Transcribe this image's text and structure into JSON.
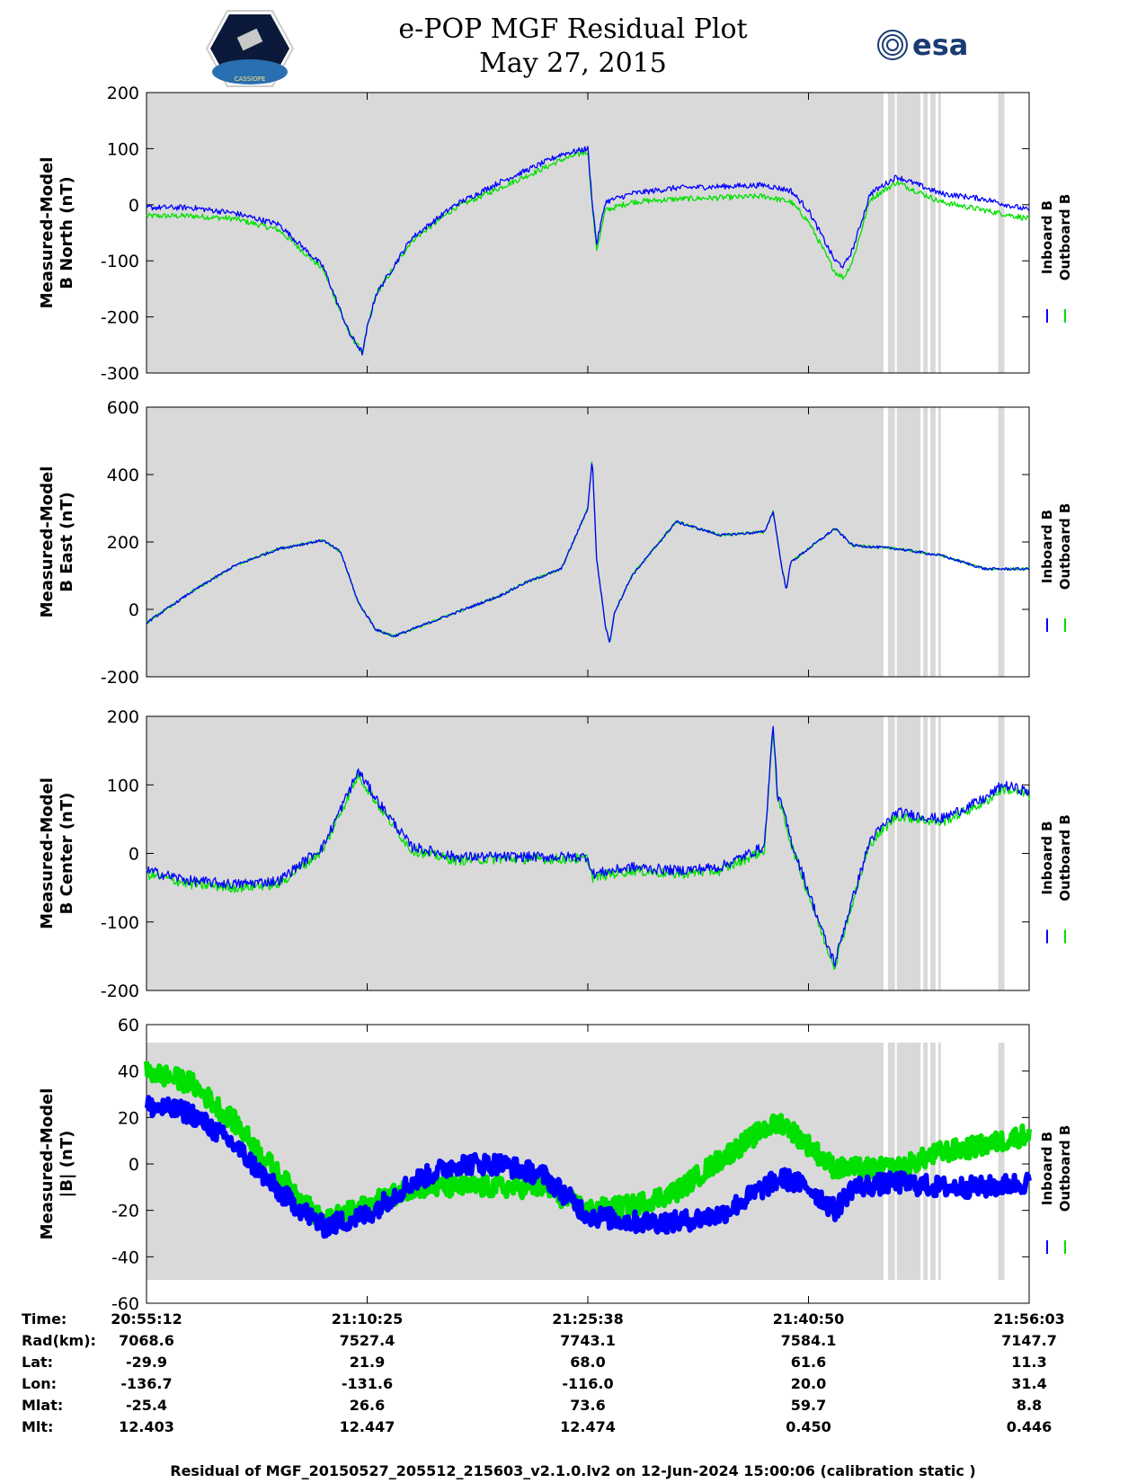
{
  "header": {
    "title_line1": "e-POP MGF Residual Plot",
    "title_line2": "May 27, 2015",
    "logo_left_text": "CASSIOPE",
    "logo_right_text": "esa"
  },
  "legend": {
    "inboard": "Inboard B",
    "outboard": "Outboard B"
  },
  "colors": {
    "inboard": "#0000ff",
    "outboard": "#00e000",
    "background": "#d9d9d9"
  },
  "chart_data": [
    {
      "type": "line",
      "ylabel_line1": "Measured-Model",
      "ylabel_line2": "B North (nT)",
      "ylim": [
        -300,
        200
      ],
      "yticks": [
        -300,
        -200,
        -100,
        0,
        100,
        200
      ],
      "x_frac": [
        0,
        0.05,
        0.1,
        0.15,
        0.2,
        0.23,
        0.245,
        0.25,
        0.26,
        0.3,
        0.35,
        0.4,
        0.45,
        0.47,
        0.5,
        0.505,
        0.51,
        0.52,
        0.53,
        0.55,
        0.6,
        0.7,
        0.73,
        0.75,
        0.77,
        0.78,
        0.79,
        0.8,
        0.82,
        0.85,
        0.9,
        0.95,
        1.0
      ],
      "series": [
        {
          "name": "Inboard B",
          "values": [
            -5,
            -5,
            -15,
            -35,
            -110,
            -230,
            -265,
            -220,
            -160,
            -60,
            0,
            40,
            75,
            90,
            100,
            5,
            -70,
            5,
            10,
            20,
            30,
            35,
            25,
            -10,
            -70,
            -100,
            -110,
            -80,
            20,
            50,
            20,
            10,
            -10
          ]
        },
        {
          "name": "Outboard B",
          "values": [
            -20,
            -20,
            -25,
            -45,
            -115,
            -230,
            -265,
            -220,
            -160,
            -65,
            -5,
            30,
            65,
            80,
            95,
            -5,
            -80,
            -10,
            -5,
            5,
            10,
            15,
            5,
            -30,
            -90,
            -120,
            -130,
            -100,
            10,
            40,
            5,
            -10,
            -25
          ]
        }
      ],
      "gray_bands": [
        [
          0,
          0.835
        ],
        [
          0.84,
          0.848
        ],
        [
          0.85,
          0.877
        ],
        [
          0.88,
          0.885
        ],
        [
          0.888,
          0.894
        ],
        [
          0.897,
          0.9
        ],
        [
          0.965,
          0.972
        ]
      ]
    },
    {
      "type": "line",
      "ylabel_line1": "Measured-Model",
      "ylabel_line2": "B East (nT)",
      "ylim": [
        -200,
        600
      ],
      "yticks": [
        -200,
        0,
        200,
        400,
        600
      ],
      "x_frac": [
        0,
        0.05,
        0.1,
        0.15,
        0.2,
        0.22,
        0.24,
        0.26,
        0.28,
        0.3,
        0.35,
        0.4,
        0.43,
        0.47,
        0.5,
        0.505,
        0.51,
        0.52,
        0.525,
        0.53,
        0.55,
        0.6,
        0.65,
        0.7,
        0.71,
        0.72,
        0.725,
        0.73,
        0.78,
        0.8,
        0.85,
        0.9,
        0.95,
        1.0
      ],
      "series": [
        {
          "name": "Inboard B",
          "values": [
            -40,
            50,
            130,
            180,
            205,
            170,
            20,
            -60,
            -80,
            -60,
            -10,
            40,
            80,
            120,
            300,
            450,
            150,
            -50,
            -100,
            -10,
            100,
            260,
            220,
            230,
            290,
            120,
            60,
            140,
            240,
            190,
            180,
            160,
            120,
            120
          ]
        },
        {
          "name": "Outboard B",
          "values": [
            -40,
            50,
            130,
            180,
            205,
            170,
            20,
            -60,
            -80,
            -60,
            -10,
            40,
            80,
            120,
            300,
            450,
            150,
            -50,
            -100,
            -10,
            100,
            260,
            220,
            230,
            290,
            120,
            60,
            140,
            240,
            190,
            180,
            160,
            120,
            120
          ]
        }
      ],
      "gray_bands": [
        [
          0,
          0.835
        ],
        [
          0.84,
          0.848
        ],
        [
          0.85,
          0.877
        ],
        [
          0.88,
          0.885
        ],
        [
          0.888,
          0.894
        ],
        [
          0.897,
          0.9
        ],
        [
          0.965,
          0.972
        ]
      ]
    },
    {
      "type": "line",
      "ylabel_line1": "Measured-Model",
      "ylabel_line2": "B Center (nT)",
      "ylim": [
        -200,
        200
      ],
      "yticks": [
        -200,
        -100,
        0,
        100,
        200
      ],
      "x_frac": [
        0,
        0.05,
        0.1,
        0.15,
        0.2,
        0.24,
        0.26,
        0.3,
        0.35,
        0.4,
        0.45,
        0.5,
        0.505,
        0.55,
        0.6,
        0.65,
        0.7,
        0.71,
        0.715,
        0.72,
        0.73,
        0.77,
        0.78,
        0.79,
        0.82,
        0.85,
        0.9,
        0.95,
        0.97,
        1.0
      ],
      "series": [
        {
          "name": "Inboard B",
          "values": [
            -25,
            -40,
            -45,
            -40,
            10,
            120,
            80,
            10,
            -5,
            -5,
            -5,
            -5,
            -30,
            -20,
            -25,
            -20,
            10,
            190,
            80,
            70,
            20,
            -130,
            -160,
            -110,
            20,
            60,
            50,
            80,
            100,
            90
          ]
        },
        {
          "name": "Outboard B",
          "values": [
            -30,
            -45,
            -50,
            -45,
            5,
            115,
            75,
            5,
            -10,
            -8,
            -8,
            -8,
            -35,
            -25,
            -30,
            -25,
            5,
            185,
            75,
            65,
            15,
            -135,
            -165,
            -115,
            15,
            55,
            45,
            75,
            95,
            85
          ]
        }
      ],
      "gray_bands": [
        [
          0,
          0.835
        ],
        [
          0.84,
          0.848
        ],
        [
          0.85,
          0.877
        ],
        [
          0.88,
          0.885
        ],
        [
          0.888,
          0.894
        ],
        [
          0.897,
          0.9
        ],
        [
          0.965,
          0.972
        ]
      ]
    },
    {
      "type": "line",
      "ylabel_line1": "Measured-Model",
      "ylabel_line2": "|B| (nT)",
      "ylim": [
        -60,
        60
      ],
      "yticks": [
        -60,
        -40,
        -20,
        0,
        20,
        40,
        60
      ],
      "x_frac": [
        0,
        0.05,
        0.1,
        0.15,
        0.2,
        0.25,
        0.3,
        0.35,
        0.4,
        0.45,
        0.5,
        0.55,
        0.6,
        0.65,
        0.7,
        0.72,
        0.75,
        0.78,
        0.8,
        0.85,
        0.9,
        0.95,
        1.0
      ],
      "series": [
        {
          "name": "Inboard B",
          "values": [
            25,
            22,
            8,
            -12,
            -27,
            -22,
            -8,
            0,
            0,
            -5,
            -22,
            -25,
            -25,
            -22,
            -10,
            -6,
            -10,
            -20,
            -10,
            -8,
            -10,
            -10,
            -8
          ]
        },
        {
          "name": "Outboard B",
          "values": [
            40,
            35,
            18,
            -5,
            -25,
            -18,
            -10,
            -10,
            -10,
            -10,
            -20,
            -18,
            -12,
            2,
            15,
            18,
            8,
            -2,
            -2,
            -2,
            5,
            8,
            13
          ]
        }
      ],
      "gray_bands": [
        [
          0,
          0.835
        ],
        [
          0.84,
          0.848
        ],
        [
          0.85,
          0.877
        ],
        [
          0.88,
          0.885
        ],
        [
          0.888,
          0.894
        ],
        [
          0.897,
          0.9
        ],
        [
          0.965,
          0.972
        ]
      ]
    }
  ],
  "x_ticks": [
    "20:55:12",
    "21:10:25",
    "21:25:38",
    "21:40:50",
    "21:56:03"
  ],
  "table": {
    "rows": [
      {
        "label": "Time:",
        "values": [
          "20:55:12",
          "21:10:25",
          "21:25:38",
          "21:40:50",
          "21:56:03"
        ]
      },
      {
        "label": "Rad(km):",
        "values": [
          "7068.6",
          "7527.4",
          "7743.1",
          "7584.1",
          "7147.7"
        ]
      },
      {
        "label": "Lat:",
        "values": [
          "-29.9",
          "21.9",
          "68.0",
          "61.6",
          "11.3"
        ]
      },
      {
        "label": "Lon:",
        "values": [
          "-136.7",
          "-131.6",
          "-116.0",
          "20.0",
          "31.4"
        ]
      },
      {
        "label": "Mlat:",
        "values": [
          "-25.4",
          "26.6",
          "73.6",
          "59.7",
          "8.8"
        ]
      },
      {
        "label": "Mlt:",
        "values": [
          "12.403",
          "12.447",
          "12.474",
          "0.450",
          "0.446"
        ]
      }
    ]
  },
  "footer": "Residual of MGF_20150527_205512_215603_v2.1.0.lv2 on 12-Jun-2024 15:00:06 (calibration static )"
}
